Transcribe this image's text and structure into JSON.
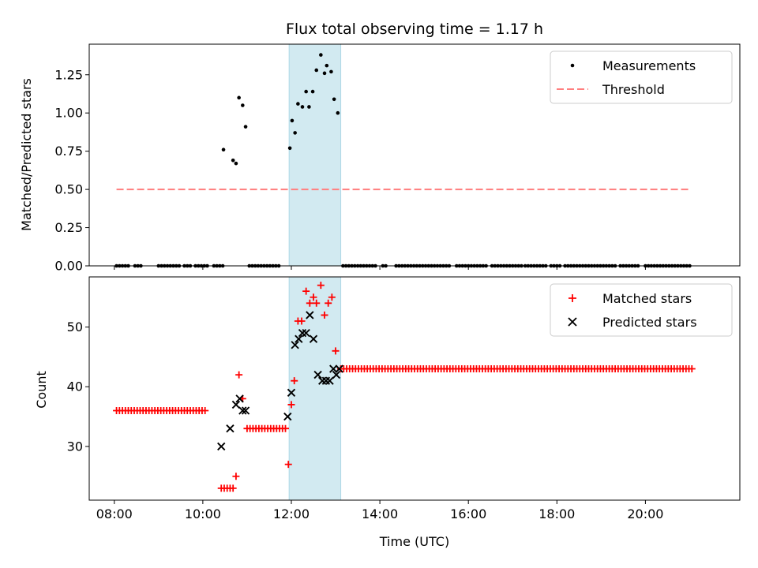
{
  "chart_data": [
    {
      "type": "scatter",
      "title": "Flux total observing time = 1.17 h",
      "ylabel": "Matched/Predicted stars",
      "xlabel": "",
      "xlim": [
        "07:26",
        "22:08"
      ],
      "ylim": [
        0,
        1.45
      ],
      "yticks": [
        0.0,
        0.25,
        0.5,
        0.75,
        1.0,
        1.25
      ],
      "ytick_labels": [
        "0.00",
        "0.25",
        "0.50",
        "0.75",
        "1.00",
        "1.25"
      ],
      "highlight_span": [
        "11:57",
        "13:07"
      ],
      "highlight_color": "#add8e6",
      "legend_position": "upper right",
      "series": [
        {
          "name": "Measurements",
          "kind": "points",
          "color": "#000000",
          "zero_runs": [
            [
              "08:03",
              "08:22"
            ],
            [
              "08:28",
              "08:36"
            ],
            [
              "09:00",
              "09:30"
            ],
            [
              "09:35",
              "09:45"
            ],
            [
              "09:50",
              "10:06"
            ],
            [
              "10:15",
              "10:28"
            ],
            [
              "11:03",
              "11:45"
            ],
            [
              "13:10",
              "13:55"
            ],
            [
              "14:04",
              "14:10"
            ],
            [
              "14:22",
              "15:37"
            ],
            [
              "15:44",
              "16:25"
            ],
            [
              "16:32",
              "17:12"
            ],
            [
              "17:17",
              "17:48"
            ],
            [
              "17:52",
              "18:05"
            ],
            [
              "18:11",
              "19:20"
            ],
            [
              "19:26",
              "19:51"
            ],
            [
              "20:00",
              "21:00"
            ]
          ],
          "points": [
            {
              "x": "10:28",
              "y": 0.76
            },
            {
              "x": "10:41",
              "y": 0.69
            },
            {
              "x": "10:45",
              "y": 0.67
            },
            {
              "x": "10:49",
              "y": 1.1
            },
            {
              "x": "10:54",
              "y": 1.05
            },
            {
              "x": "10:58",
              "y": 0.91
            },
            {
              "x": "11:58",
              "y": 0.77
            },
            {
              "x": "12:01",
              "y": 0.95
            },
            {
              "x": "12:05",
              "y": 0.87
            },
            {
              "x": "12:09",
              "y": 1.06
            },
            {
              "x": "12:15",
              "y": 1.04
            },
            {
              "x": "12:20",
              "y": 1.14
            },
            {
              "x": "12:24",
              "y": 1.04
            },
            {
              "x": "12:29",
              "y": 1.14
            },
            {
              "x": "12:34",
              "y": 1.28
            },
            {
              "x": "12:40",
              "y": 1.38
            },
            {
              "x": "12:45",
              "y": 1.26
            },
            {
              "x": "12:48",
              "y": 1.31
            },
            {
              "x": "12:54",
              "y": 1.27
            },
            {
              "x": "12:58",
              "y": 1.09
            },
            {
              "x": "13:03",
              "y": 1.0
            }
          ]
        },
        {
          "name": "Threshold",
          "kind": "dashed-line",
          "color": "#ff7f7f",
          "x": [
            "08:03",
            "21:00"
          ],
          "y": [
            0.5,
            0.5
          ]
        }
      ]
    },
    {
      "type": "scatter",
      "title": "",
      "xlabel": "Time (UTC)",
      "ylabel": "Count",
      "xlim": [
        "07:26",
        "22:08"
      ],
      "ylim": [
        21,
        58.4
      ],
      "xticks": [
        "08:00",
        "10:00",
        "12:00",
        "14:00",
        "16:00",
        "18:00",
        "20:00"
      ],
      "yticks": [
        30,
        40,
        50
      ],
      "ytick_labels": [
        "30",
        "40",
        "50"
      ],
      "highlight_span": [
        "11:57",
        "13:07"
      ],
      "highlight_color": "#add8e6",
      "legend_position": "upper right",
      "series": [
        {
          "name": "Matched stars",
          "kind": "plus",
          "color": "#ff0000",
          "runs": [
            {
              "from": "08:03",
              "to": "10:06",
              "y": 36
            },
            {
              "from": "11:00",
              "to": "11:55",
              "y": 33
            },
            {
              "from": "13:07",
              "to": "21:03",
              "y": 43
            }
          ],
          "points": [
            {
              "x": "10:25",
              "y": 23
            },
            {
              "x": "10:29",
              "y": 23
            },
            {
              "x": "10:33",
              "y": 23
            },
            {
              "x": "10:37",
              "y": 23
            },
            {
              "x": "10:41",
              "y": 23
            },
            {
              "x": "10:45",
              "y": 25
            },
            {
              "x": "10:49",
              "y": 42
            },
            {
              "x": "10:54",
              "y": 38
            },
            {
              "x": "11:56",
              "y": 27
            },
            {
              "x": "12:00",
              "y": 37
            },
            {
              "x": "12:04",
              "y": 41
            },
            {
              "x": "12:09",
              "y": 51
            },
            {
              "x": "12:14",
              "y": 51
            },
            {
              "x": "12:20",
              "y": 56
            },
            {
              "x": "12:25",
              "y": 54
            },
            {
              "x": "12:30",
              "y": 55
            },
            {
              "x": "12:34",
              "y": 54
            },
            {
              "x": "12:40",
              "y": 57
            },
            {
              "x": "12:45",
              "y": 52
            },
            {
              "x": "12:50",
              "y": 54
            },
            {
              "x": "12:55",
              "y": 55
            },
            {
              "x": "13:00",
              "y": 46
            }
          ]
        },
        {
          "name": "Predicted stars",
          "kind": "x",
          "color": "#000000",
          "points": [
            {
              "x": "10:25",
              "y": 30
            },
            {
              "x": "10:37",
              "y": 33
            },
            {
              "x": "10:45",
              "y": 37
            },
            {
              "x": "10:50",
              "y": 38
            },
            {
              "x": "10:54",
              "y": 36
            },
            {
              "x": "10:58",
              "y": 36
            },
            {
              "x": "11:55",
              "y": 35
            },
            {
              "x": "12:00",
              "y": 39
            },
            {
              "x": "12:05",
              "y": 47
            },
            {
              "x": "12:10",
              "y": 48
            },
            {
              "x": "12:15",
              "y": 49
            },
            {
              "x": "12:20",
              "y": 49
            },
            {
              "x": "12:25",
              "y": 52
            },
            {
              "x": "12:30",
              "y": 48
            },
            {
              "x": "12:36",
              "y": 42
            },
            {
              "x": "12:42",
              "y": 41
            },
            {
              "x": "12:47",
              "y": 41
            },
            {
              "x": "12:52",
              "y": 41
            },
            {
              "x": "12:57",
              "y": 43
            },
            {
              "x": "13:01",
              "y": 42
            },
            {
              "x": "13:05",
              "y": 43
            }
          ]
        }
      ]
    }
  ]
}
